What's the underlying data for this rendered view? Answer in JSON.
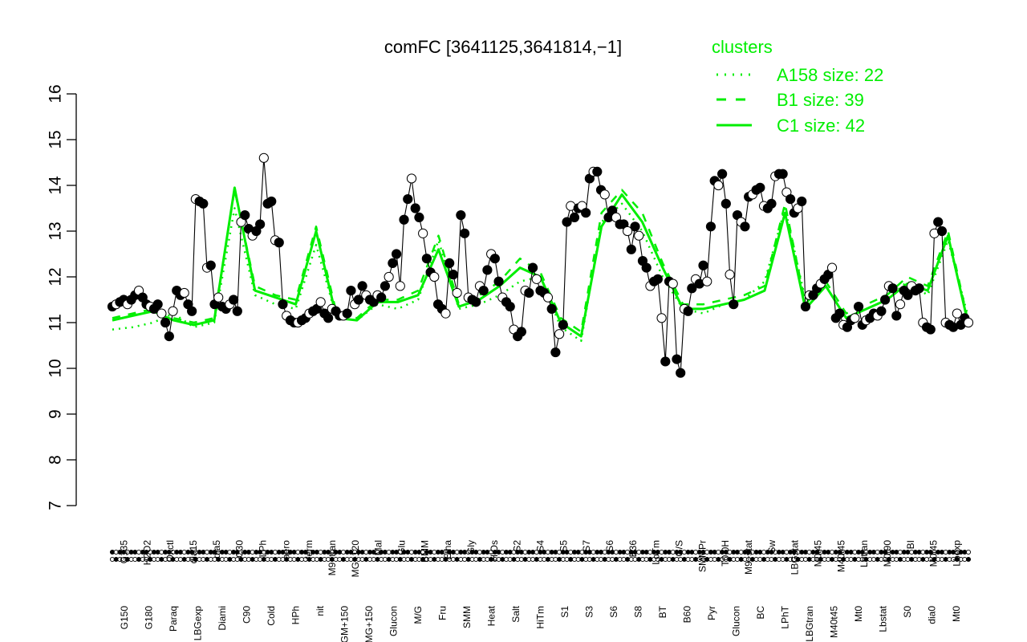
{
  "chart_data": {
    "type": "line",
    "title": "comFC [3641125,3641814,−1]",
    "xlabel": "",
    "ylabel": "",
    "ylim": [
      7,
      16
    ],
    "yticks": [
      7,
      8,
      9,
      10,
      11,
      12,
      13,
      14,
      15,
      16
    ],
    "grid": false,
    "legend": {
      "title": "clusters",
      "placement": "top-right",
      "color": "#00ee00",
      "entries": [
        {
          "label": "A158 size: 22",
          "style": "dotted"
        },
        {
          "label": "B1 size: 39",
          "style": "dashed"
        },
        {
          "label": "C1 size: 42",
          "style": "solid"
        }
      ]
    },
    "x_tick_labels_upper": [
      "G135",
      "H2O2",
      "Oxctl",
      "dia15",
      "dia5",
      "C30",
      "LPh",
      "aero",
      "ferm",
      "M9−tran",
      "MG+120",
      "Mal",
      "Glu",
      "BMM",
      "Etha",
      "Gly",
      "HiOs",
      "S2",
      "S4",
      "S5",
      "S7",
      "S6",
      "B36",
      "LoTm",
      "G/S",
      "SMMPr",
      "T0.0H",
      "M9−stat",
      "Sw",
      "LBGstat",
      "M0t45",
      "M40t45",
      "Lbtran",
      "M0t90",
      "BI",
      "M0t45",
      "Lbexp"
    ],
    "x_tick_labels_lower": [
      "G150",
      "G180",
      "Paraq",
      "LBGexp",
      "Diami",
      "C90",
      "Cold",
      "HPh",
      "nit",
      "GM+150",
      "MG+150",
      "Glucon",
      "M/G",
      "Fru",
      "SMM",
      "Heat",
      "Salt",
      "HiTm",
      "S1",
      "S3",
      "S6",
      "S8",
      "BT",
      "B60",
      "Pyr",
      "Glucon",
      "BC",
      "LPhT",
      "LBGtran",
      "M40t45",
      "Mt0",
      "Lbstat",
      "S0",
      "dia0",
      "Mt0"
    ],
    "series": [
      {
        "values": [
          11.35,
          11.4,
          11.45,
          11.5,
          11.4,
          11.5,
          11.6,
          11.7,
          11.55,
          11.4,
          11.35,
          11.3,
          11.4,
          11.2,
          11.0,
          10.7,
          11.25,
          11.7,
          11.6,
          11.65,
          11.4,
          11.25,
          13.7,
          13.65,
          13.6,
          12.2,
          12.25,
          11.4,
          11.55,
          11.35,
          11.3,
          11.4,
          11.5,
          11.25,
          13.2,
          13.35,
          13.05,
          12.9,
          13.0,
          13.15,
          14.6,
          13.6,
          13.65,
          12.8,
          12.75,
          11.4,
          11.15,
          11.05,
          11.0,
          11.0,
          11.05,
          11.1,
          11.2,
          11.25,
          11.3,
          11.45,
          11.2,
          11.1,
          11.3,
          11.25,
          11.15,
          11.15,
          11.2,
          11.7,
          11.4,
          11.5,
          11.8,
          11.6,
          11.5,
          11.45,
          11.6,
          11.55,
          11.8,
          12.0,
          12.3,
          12.5,
          11.8,
          13.25,
          13.7,
          14.15,
          13.5,
          13.3,
          12.95,
          12.4,
          12.1,
          12.0,
          11.4,
          11.3,
          11.2,
          12.3,
          12.05,
          11.65,
          13.35,
          12.95,
          11.55,
          11.5,
          11.45,
          11.8,
          11.7,
          12.15,
          12.5,
          12.4,
          11.9,
          11.55,
          11.45,
          11.35,
          10.85,
          10.7,
          10.8,
          11.7,
          11.65,
          12.2,
          11.95,
          11.7,
          11.65,
          11.55,
          11.3,
          10.35,
          10.75,
          10.95,
          13.2,
          13.55,
          13.3,
          13.5,
          13.55,
          13.4,
          14.15,
          14.3,
          14.3,
          13.9,
          13.8,
          13.3,
          13.45,
          13.3,
          13.15,
          13.15,
          13.0,
          12.6,
          13.1,
          12.9,
          12.35,
          12.2,
          11.8,
          11.9,
          11.95,
          11.1,
          10.15,
          11.9,
          11.85,
          10.2,
          9.9,
          11.3,
          11.25,
          11.75,
          11.95,
          11.85,
          12.25,
          11.9,
          13.1,
          14.1,
          14.0,
          14.25,
          13.6,
          12.05,
          11.4,
          13.35,
          13.2,
          13.1,
          13.75,
          13.8,
          13.9,
          13.95,
          13.55,
          13.5,
          13.6,
          14.2,
          14.25,
          14.25,
          13.85,
          13.7,
          13.4,
          13.5,
          13.65,
          11.35,
          11.6,
          11.6,
          11.75,
          11.85,
          11.95,
          12.05,
          12.2,
          11.1,
          11.2,
          10.95,
          10.9,
          11.05,
          11.1,
          11.35,
          10.95,
          11.05,
          11.1,
          11.2,
          11.15,
          11.25,
          11.5,
          11.8,
          11.75,
          11.15,
          11.4,
          11.7,
          11.6,
          11.8,
          11.7,
          11.75,
          11.0,
          10.9,
          10.85,
          12.95,
          13.2,
          13.0,
          11.0,
          10.95,
          10.9,
          11.2,
          10.95,
          11.1,
          11.0
        ]
      },
      {
        "name": "A158",
        "values": [
          10.85,
          10.9,
          11.0,
          11.2,
          10.9,
          11.0,
          13.5,
          11.6,
          11.4,
          11.3,
          12.7,
          11.1,
          11.05,
          11.4,
          11.3,
          11.5,
          12.8,
          11.3,
          11.4,
          11.6,
          11.9,
          12.0,
          10.9,
          10.6,
          13.2,
          13.6,
          13.0,
          12.0,
          11.3,
          11.2,
          11.4,
          11.5,
          11.9,
          13.5,
          11.5,
          11.8,
          11.1,
          11.3,
          11.5,
          11.9,
          11.6,
          12.8,
          11.1
        ]
      },
      {
        "name": "B1",
        "values": [
          11.1,
          11.2,
          11.3,
          11.1,
          11.0,
          11.1,
          13.9,
          11.8,
          11.6,
          11.5,
          13.1,
          11.2,
          11.1,
          11.5,
          11.5,
          11.7,
          12.9,
          11.4,
          11.6,
          11.9,
          12.4,
          12.1,
          11.1,
          10.8,
          13.4,
          13.9,
          13.4,
          12.3,
          11.4,
          11.4,
          11.5,
          11.6,
          11.8,
          13.6,
          11.4,
          11.9,
          11.2,
          11.4,
          11.6,
          12.0,
          11.8,
          13.0,
          11.0
        ]
      },
      {
        "name": "C1",
        "values": [
          11.05,
          11.15,
          11.25,
          11.05,
          10.95,
          11.05,
          13.95,
          11.7,
          11.55,
          11.4,
          13.0,
          11.1,
          11.05,
          11.45,
          11.45,
          11.6,
          12.6,
          11.35,
          11.5,
          11.8,
          12.2,
          12.0,
          11.0,
          10.7,
          13.1,
          13.8,
          13.2,
          12.2,
          11.3,
          11.3,
          11.4,
          11.5,
          11.7,
          13.4,
          11.3,
          11.8,
          11.1,
          11.3,
          11.5,
          11.85,
          11.7,
          12.9,
          10.95
        ]
      }
    ]
  }
}
